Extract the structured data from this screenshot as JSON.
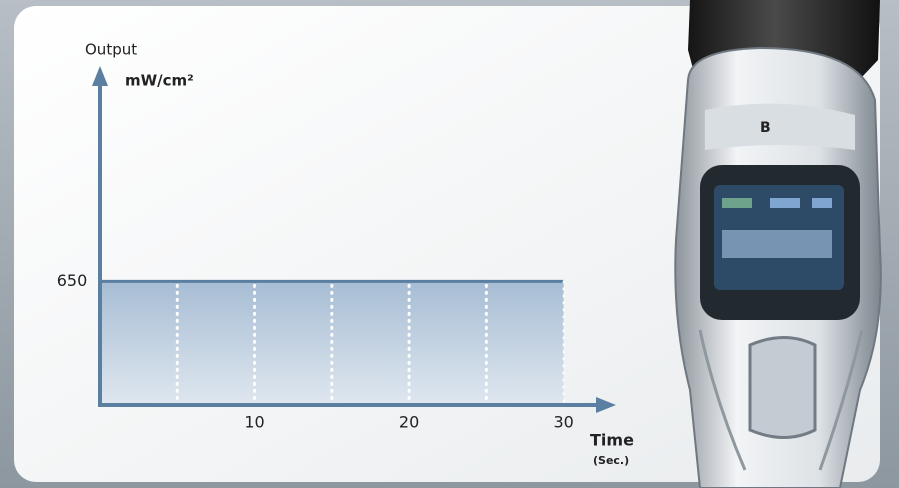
{
  "chart_data": {
    "type": "area",
    "y_label": "Output",
    "y_unit": "mW/cm²",
    "x_label": "Time",
    "x_unit": "(Sec.)",
    "x": [
      0,
      30
    ],
    "values": [
      650,
      650
    ],
    "color": "#5b7fa0",
    "xlim": [
      0,
      33
    ],
    "xticks": [
      10,
      20,
      30
    ],
    "ylim": [
      0,
      1750
    ],
    "yticks": [
      650
    ],
    "x_gridlines": [
      5,
      10,
      15,
      20,
      25
    ]
  }
}
